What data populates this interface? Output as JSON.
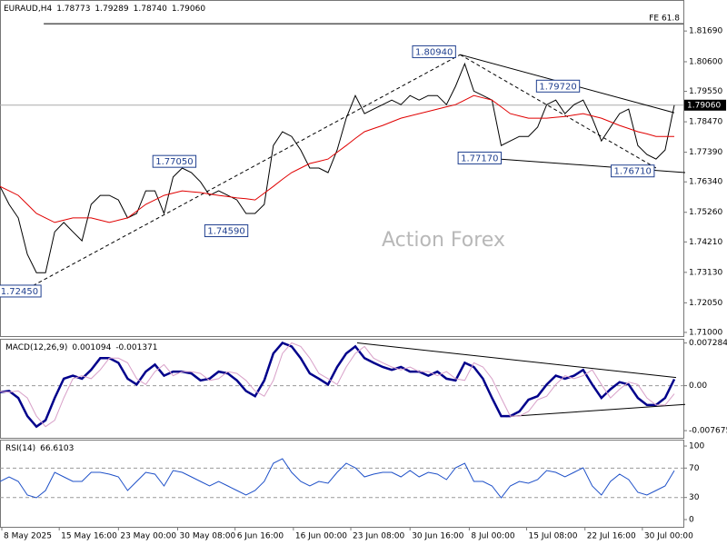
{
  "watermark": "Action Forex",
  "chart_data": [
    {
      "type": "line",
      "title": "EURAUD,H4",
      "quote": [
        1.78773,
        1.79289,
        {
          "value": 1.7874,
          "label": "1.78740"
        },
        {
          "value": 1.7906,
          "label": "1.79060"
        }
      ],
      "xlim": [
        0,
        75
      ],
      "ylim": [
        1.7087,
        1.8279
      ],
      "yticks": [
        {
          "value": 1.8169,
          "label": "1.81690"
        },
        {
          "value": 1.806,
          "label": "1.80600"
        },
        {
          "value": 1.7955,
          "label": "1.79550"
        },
        {
          "value": 1.7847,
          "label": "1.78470"
        },
        {
          "value": 1.7739,
          "label": "1.77390"
        },
        {
          "value": 1.7634,
          "label": "1.76340"
        },
        {
          "value": 1.7526,
          "label": "1.75260"
        },
        {
          "value": 1.7421,
          "label": "1.74210"
        },
        {
          "value": 1.7313,
          "label": "1.73130"
        },
        {
          "value": 1.7205,
          "label": "1.72050"
        },
        {
          "value": 1.71,
          "label": "1.71000"
        }
      ],
      "series": [
        {
          "color": "#000000",
          "values": [
            1.7618,
            1.7554,
            1.7506,
            1.7377,
            1.7312,
            1.7312,
            1.7457,
            1.749,
            1.7457,
            1.7425,
            1.7554,
            1.7586,
            1.7586,
            1.757,
            1.7506,
            1.7522,
            1.7602,
            1.7602,
            1.7522,
            1.7651,
            1.7683,
            1.7667,
            1.7634,
            1.7586,
            1.7602,
            1.7586,
            1.757,
            1.7522,
            1.7522,
            1.7554,
            1.7763,
            1.7812,
            1.7795,
            1.7747,
            1.7683,
            1.7683,
            1.7667,
            1.7747,
            1.786,
            1.794,
            1.7876,
            1.7892,
            1.7908,
            1.7924,
            1.7908,
            1.794,
            1.7924,
            1.794,
            1.794,
            1.7908,
            1.7973,
            1.8053,
            1.7956,
            1.794,
            1.7924,
            1.7763,
            1.7779,
            1.7795,
            1.7795,
            1.7828,
            1.7908,
            1.7924,
            1.7876,
            1.7908,
            1.7924,
            1.786,
            1.7779,
            1.7828,
            1.7876,
            1.7892,
            1.7763,
            1.7731,
            1.7715,
            1.7747,
            1.7906
          ]
        },
        {
          "color": "#e00000",
          "values": [
            1.7618,
            1.7602,
            1.7586,
            1.7554,
            1.7522,
            1.7506,
            1.749,
            1.7498,
            1.7506,
            1.7506,
            1.7506,
            1.7498,
            1.749,
            1.7498,
            1.7506,
            1.753,
            1.7554,
            1.757,
            1.7586,
            1.7594,
            1.7602,
            1.7599,
            1.7596,
            1.7591,
            1.7586,
            1.7582,
            1.7577,
            1.7574,
            1.757,
            1.7594,
            1.7618,
            1.7643,
            1.7667,
            1.7683,
            1.7699,
            1.7707,
            1.7715,
            1.7739,
            1.7763,
            1.7788,
            1.7812,
            1.7823,
            1.7834,
            1.7847,
            1.786,
            1.7868,
            1.7876,
            1.7884,
            1.7892,
            1.79,
            1.7908,
            1.7924,
            1.794,
            1.7932,
            1.7924,
            1.79,
            1.7876,
            1.7868,
            1.786,
            1.786,
            1.786,
            1.7863,
            1.7866,
            1.7871,
            1.7876,
            1.7868,
            1.786,
            1.7847,
            1.7834,
            1.7823,
            1.7812,
            1.7804,
            1.7795,
            1.7795,
            1.7795
          ]
        }
      ],
      "last_price": {
        "value": 1.7906,
        "label": "1.79060"
      },
      "fibo": {
        "label": "FE 61.8",
        "value": 1.8195,
        "x": 4.8
      },
      "trendlines": [
        {
          "x": [
            50.5,
            74
          ],
          "y": [
            1.8085,
            1.7879
          ],
          "style": "solid"
        },
        {
          "x": [
            54.8,
            75.2
          ],
          "y": [
            1.7715,
            1.7667
          ],
          "style": "solid"
        },
        {
          "x": [
            3,
            50.5
          ],
          "y": [
            1.7255,
            1.8085
          ],
          "style": "dashed"
        },
        {
          "x": [
            50.5,
            72
          ],
          "y": [
            1.8085,
            1.7683
          ],
          "style": "dashed"
        }
      ],
      "annotations": [
        {
          "x": 4.5,
          "value": 1.7245,
          "label": "1.72450"
        },
        {
          "x": 21.5,
          "value": 1.7705,
          "label": "1.77050"
        },
        {
          "x": 27.2,
          "value": 1.7459,
          "label": "1.74590"
        },
        {
          "x": 50,
          "value": 1.8094,
          "label": "1.80940"
        },
        {
          "x": 55,
          "value": 1.7717,
          "label": "1.77170"
        },
        {
          "x": 63.6,
          "value": 1.7972,
          "label": "1.79720"
        },
        {
          "x": 71.8,
          "value": 1.7671,
          "label": "1.76710"
        }
      ]
    },
    {
      "type": "line",
      "title": "MACD(12,26,9)",
      "readout": [
        0.001094,
        -0.001371
      ],
      "xlim": [
        0,
        75
      ],
      "ylim": [
        -0.0089,
        0.008
      ],
      "yticks": [
        0.007284,
        {
          "value": 0,
          "label": "0.00"
        },
        -0.007675
      ],
      "levels": [
        0
      ],
      "series": [
        {
          "color": "#00008b",
          "values": [
            -0.0011,
            -0.0009,
            -0.0021,
            -0.0052,
            -0.007,
            -0.0059,
            -0.0021,
            0.0012,
            0.0017,
            0.0012,
            0.0027,
            0.0047,
            0.0047,
            0.0039,
            0.0012,
            0.0002,
            0.0024,
            0.0036,
            0.0017,
            0.0024,
            0.0024,
            0.0021,
            0.0009,
            0.0012,
            0.0024,
            0.0021,
            0.0009,
            -0.0009,
            -0.0018,
            0.0009,
            0.0055,
            0.0073,
            0.0067,
            0.0047,
            0.0021,
            0.0012,
            0.0002,
            0.0032,
            0.0055,
            0.0067,
            0.0047,
            0.0039,
            0.0032,
            0.0027,
            0.0032,
            0.0024,
            0.0024,
            0.0017,
            0.0024,
            0.0012,
            0.0009,
            0.0039,
            0.0032,
            0.0012,
            -0.0021,
            -0.0052,
            -0.0052,
            -0.0044,
            -0.0024,
            -0.0018,
            0.0002,
            0.0017,
            0.0012,
            0.0017,
            0.0027,
            0.0002,
            -0.0021,
            -0.0006,
            0.0006,
            0.0002,
            -0.0021,
            -0.0033,
            -0.0033,
            -0.0021,
            0.0011
          ]
        },
        {
          "color": "#d8a0c8",
          "values": [
            -0.001,
            -0.0011,
            -0.0009,
            -0.0021,
            -0.0052,
            -0.007,
            -0.0059,
            -0.0021,
            0.0012,
            0.0017,
            0.0012,
            0.0027,
            0.0047,
            0.0047,
            0.0039,
            0.0012,
            0.0002,
            0.0024,
            0.0036,
            0.0017,
            0.0024,
            0.0024,
            0.0021,
            0.0009,
            0.0012,
            0.0024,
            0.0021,
            0.0009,
            -0.0009,
            -0.0018,
            0.0009,
            0.0055,
            0.0073,
            0.0067,
            0.0047,
            0.0021,
            0.0012,
            0.0002,
            0.0032,
            0.0055,
            0.0067,
            0.0047,
            0.0039,
            0.0032,
            0.0027,
            0.0032,
            0.0024,
            0.0024,
            0.0017,
            0.0024,
            0.0012,
            0.0009,
            0.0039,
            0.0032,
            0.0012,
            -0.0021,
            -0.0052,
            -0.0052,
            -0.0044,
            -0.0024,
            -0.0018,
            0.0002,
            0.0017,
            0.0012,
            0.0017,
            0.0027,
            0.0002,
            -0.0021,
            -0.0006,
            0.0006,
            0.0002,
            -0.0021,
            -0.0033,
            -0.0033,
            -0.0014
          ]
        }
      ],
      "trendlines": [
        {
          "x": [
            39.2,
            74.2
          ],
          "y": [
            0.0073,
            0.0014
          ],
          "style": "solid"
        },
        {
          "x": [
            55.5,
            75.2
          ],
          "y": [
            -0.0053,
            -0.0032
          ],
          "style": "solid"
        }
      ]
    },
    {
      "type": "line",
      "title": "RSI(14)",
      "readout": [
        66.6103
      ],
      "xlim": [
        0,
        75
      ],
      "ylim": [
        -9.9,
        108.7
      ],
      "yticks": [
        100,
        70,
        30,
        0
      ],
      "levels": [
        70,
        30
      ],
      "series": [
        {
          "color": "#1e50c8",
          "values": [
            51.9,
            58.0,
            51.9,
            33.3,
            29.6,
            39.5,
            64.2,
            58.0,
            51.9,
            51.9,
            64.2,
            64.2,
            61.8,
            58.0,
            39.5,
            51.9,
            64.2,
            61.8,
            45.7,
            66.7,
            64.2,
            58.0,
            51.9,
            45.7,
            51.9,
            45.7,
            39.5,
            33.3,
            39.5,
            51.9,
            76.6,
            82.7,
            64.2,
            51.9,
            45.7,
            51.9,
            49.4,
            64.2,
            76.6,
            70.4,
            58.0,
            61.8,
            64.2,
            64.2,
            58.0,
            66.7,
            58.0,
            64.2,
            61.8,
            54.3,
            70.4,
            76.6,
            51.9,
            51.9,
            45.7,
            29.6,
            45.7,
            51.9,
            49.4,
            54.3,
            66.7,
            64.2,
            58.0,
            64.2,
            70.4,
            45.7,
            33.3,
            51.9,
            61.8,
            54.3,
            37.1,
            33.3,
            39.5,
            45.7,
            66.6
          ]
        }
      ],
      "xticks": [
        {
          "value": 0.2,
          "label": "8 May 2025"
        },
        {
          "value": 6.5,
          "label": "15 May 16:00"
        },
        {
          "value": 13,
          "label": "23 May 00:00"
        },
        {
          "value": 19.5,
          "label": "30 May 08:00"
        },
        {
          "value": 25.8,
          "label": "6 Jun 16:00"
        },
        {
          "value": 32.2,
          "label": "16 Jun 00:00"
        },
        {
          "value": 38.5,
          "label": "23 Jun 08:00"
        },
        {
          "value": 45,
          "label": "30 Jun 16:00"
        },
        {
          "value": 51.5,
          "label": "8 Jul 00:00"
        },
        {
          "value": 57.8,
          "label": "15 Jul 08:00"
        },
        {
          "value": 64.2,
          "label": "22 Jul 16:00"
        },
        {
          "value": 70.5,
          "label": "30 Jul 00:00"
        }
      ]
    }
  ]
}
